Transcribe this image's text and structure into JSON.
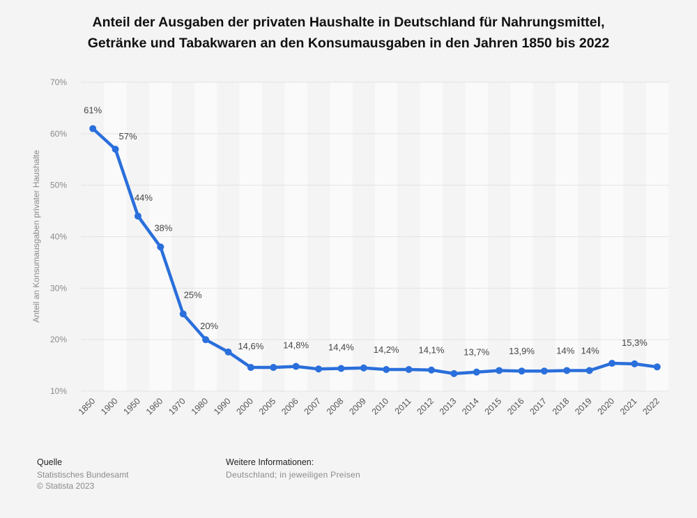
{
  "chart_data": {
    "type": "line",
    "title": "Anteil der Ausgaben der privaten Haushalte in Deutschland für Nahrungsmittel, Getränke und Tabakwaren an den Konsumausgaben in den Jahren 1850 bis 2022",
    "title_lines": [
      "Anteil der Ausgaben der privaten Haushalte in Deutschland für Nahrungsmittel,",
      "Getränke und Tabakwaren an den Konsumausgaben in den Jahren 1850 bis 2022"
    ],
    "xlabel": "",
    "ylabel": "Anteil an Konsumausgaben privater Haushalte",
    "ylim": [
      10,
      70
    ],
    "yticks": [
      10,
      20,
      30,
      40,
      50,
      60,
      70
    ],
    "ytick_labels": [
      "10%",
      "20%",
      "30%",
      "40%",
      "50%",
      "60%",
      "70%"
    ],
    "grid": true,
    "legend": "none",
    "line_color": "#2a6fdb",
    "categories": [
      "1850",
      "1900",
      "1950",
      "1960",
      "1970",
      "1980",
      "1990",
      "2000",
      "2005",
      "2006",
      "2007",
      "2008",
      "2009",
      "2010",
      "2011",
      "2012",
      "2013",
      "2014",
      "2015",
      "2016",
      "2017",
      "2018",
      "2019",
      "2020",
      "2021",
      "2022"
    ],
    "series": [
      {
        "name": "Anteil an Konsumausgaben",
        "values": [
          61,
          57,
          44,
          38,
          25,
          20,
          17.6,
          14.6,
          14.6,
          14.8,
          14.3,
          14.4,
          14.5,
          14.2,
          14.2,
          14.1,
          13.4,
          13.7,
          14.0,
          13.9,
          13.9,
          14.0,
          14.0,
          15.4,
          15.3,
          14.7
        ],
        "data_labels": [
          "61%",
          "57%",
          "44%",
          "38%",
          "25%",
          "20%",
          "",
          "14,6%",
          "",
          "14,8%",
          "",
          "14,4%",
          "",
          "14,2%",
          "",
          "14,1%",
          "",
          "13,7%",
          "",
          "13,9%",
          "",
          "14%",
          "14%",
          "",
          "15,3%",
          ""
        ]
      }
    ]
  },
  "footer": {
    "source_label": "Quelle",
    "source_lines": [
      "Statistisches Bundesamt",
      "© Statista 2023"
    ],
    "info_label": "Weitere Informationen:",
    "info_text": "Deutschland; in jeweiligen Preisen"
  }
}
